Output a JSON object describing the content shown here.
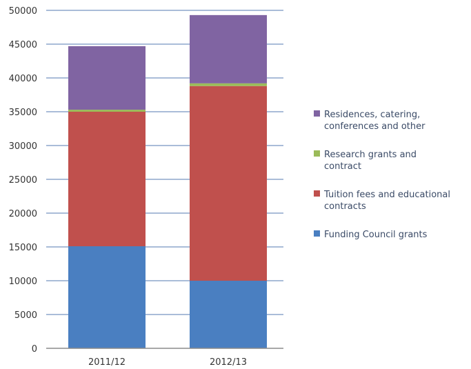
{
  "chart_data": {
    "type": "bar",
    "stacked": true,
    "categories": [
      "2011/12",
      "2012/13"
    ],
    "series": [
      {
        "name": "Funding Council grants",
        "color": "#4a7fc1",
        "values": [
          15100,
          10000
        ]
      },
      {
        "name": "Tuition fees and educational contracts",
        "color": "#c0504d",
        "values": [
          19900,
          28800
        ]
      },
      {
        "name": "Research grants and contract",
        "color": "#9bbb59",
        "values": [
          300,
          400
        ]
      },
      {
        "name": "Residences, catering, conferences and other",
        "color": "#8064a2",
        "values": [
          9400,
          10100
        ]
      }
    ],
    "ylim": [
      0,
      50000
    ],
    "yticks": [
      "0",
      "5000",
      "10000",
      "15000",
      "20000",
      "25000",
      "30000",
      "35000",
      "40000",
      "45000",
      "50000"
    ],
    "grid": true,
    "legend_position": "right",
    "legend": [
      {
        "series": "Residences, catering, conferences and other",
        "lines": [
          "Residences, catering,",
          "conferences and other"
        ],
        "color": "#8064a2"
      },
      {
        "series": "Research grants and contract",
        "lines": [
          "Research grants and",
          "contract"
        ],
        "color": "#9bbb59"
      },
      {
        "series": "Tuition fees and educational contracts",
        "lines": [
          "Tuition fees and educational",
          "contracts"
        ],
        "color": "#c0504d"
      },
      {
        "series": "Funding Council grants",
        "lines": [
          "Funding Council grants"
        ],
        "color": "#4a7fc1"
      }
    ]
  }
}
